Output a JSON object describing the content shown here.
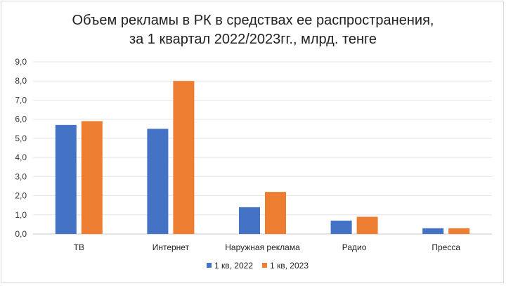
{
  "chart_data": {
    "type": "bar",
    "title": "Объем рекламы  в РК в средствах ее распространения,",
    "subtitle": "за 1 квартал 2022/2023гг., млрд. тенге",
    "categories": [
      "ТВ",
      "Интернет",
      "Наружная реклама",
      "Радио",
      "Пресса"
    ],
    "series": [
      {
        "name": "1 кв, 2022",
        "values": [
          5.7,
          5.5,
          1.4,
          0.7,
          0.3
        ],
        "color": "#4472c4"
      },
      {
        "name": "1 кв, 2023",
        "values": [
          5.9,
          8.0,
          2.2,
          0.9,
          0.3
        ],
        "color": "#ed7d31"
      }
    ],
    "yticks": [
      "0,0",
      "1,0",
      "2,0",
      "3,0",
      "4,0",
      "5,0",
      "6,0",
      "7,0",
      "8,0",
      "9,0"
    ],
    "ylim": [
      0,
      9
    ],
    "grid": true,
    "legend": "bottom"
  }
}
